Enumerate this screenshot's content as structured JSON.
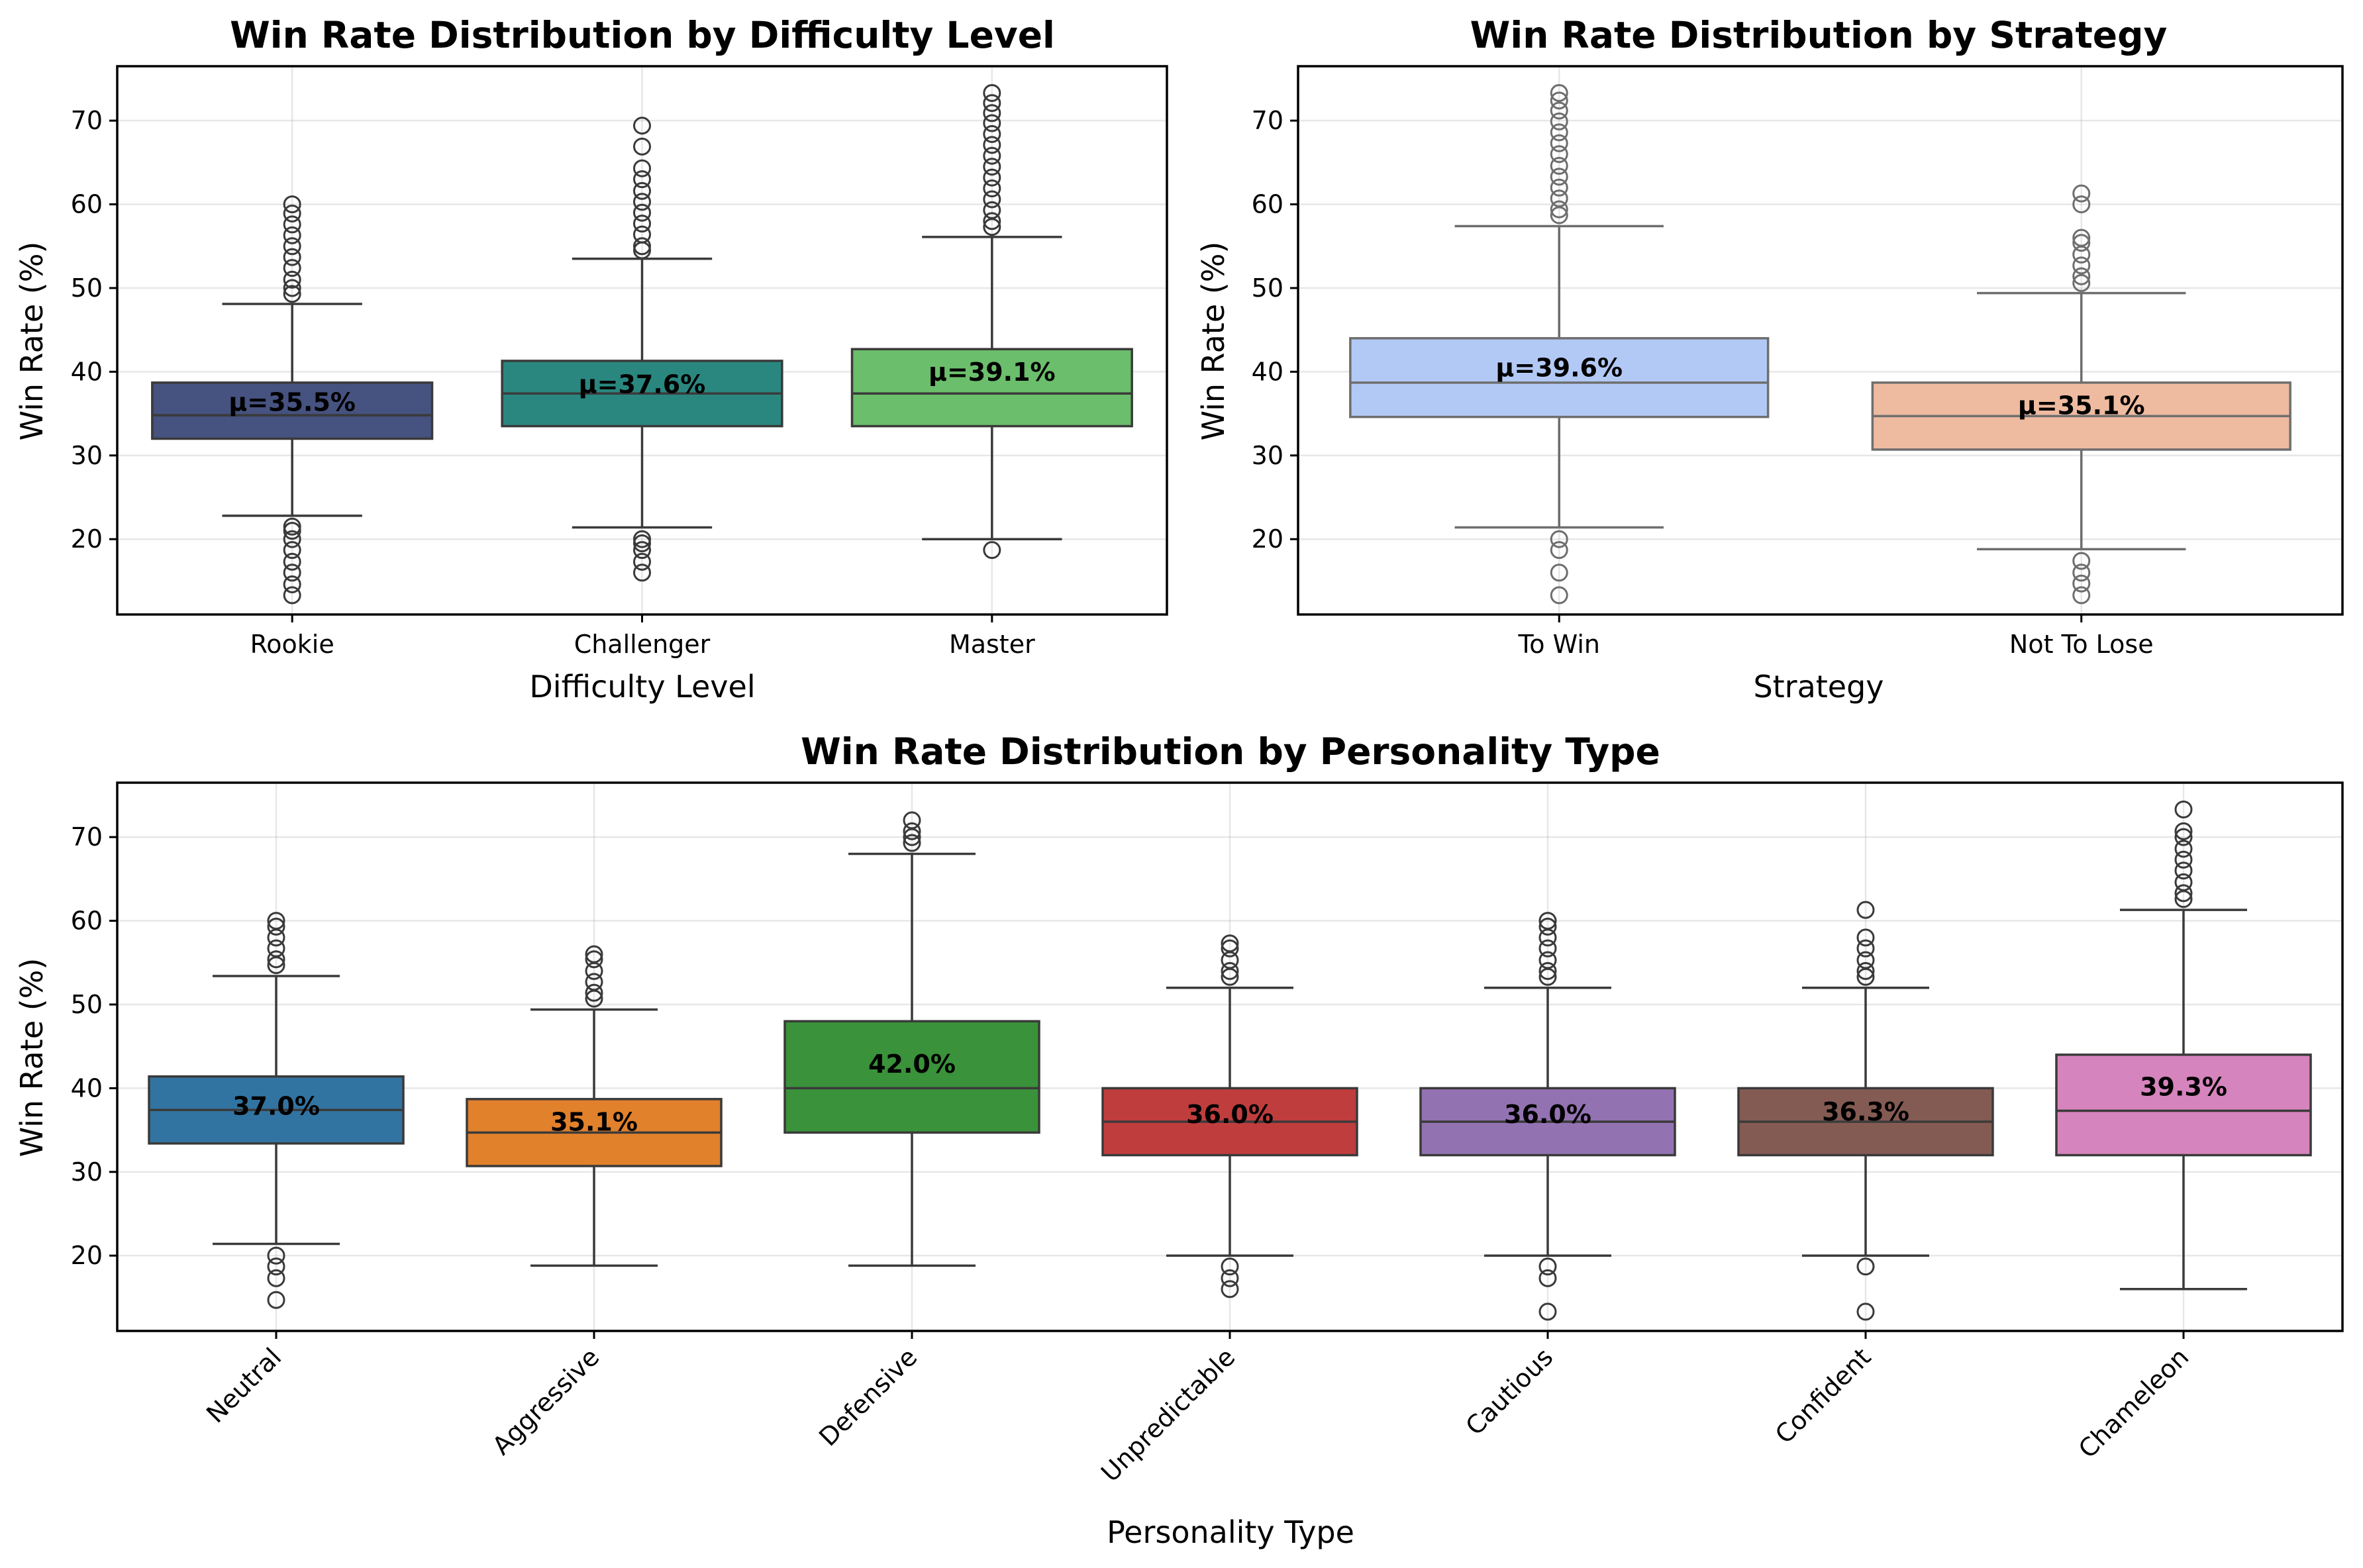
{
  "colors": {
    "box_edge": "#3a3a3a",
    "box_edge_light": "#6e6e6e"
  },
  "chart_data": [
    {
      "type": "box",
      "title": "Win Rate Distribution by Difficulty Level",
      "xlabel": "Difficulty Level",
      "ylabel": "Win Rate (%)",
      "ylim": [
        11,
        76.5
      ],
      "yticks": [
        20,
        30,
        40,
        50,
        60,
        70
      ],
      "grid": true,
      "mean_label_prefix": "μ=",
      "categories": [
        "Rookie",
        "Challenger",
        "Master"
      ],
      "boxes": [
        {
          "category": "Rookie",
          "color": "#46527f",
          "whislo": 22.8,
          "q1": 32.0,
          "median": 34.8,
          "q3": 38.7,
          "whishi": 48.1,
          "mean": 35.5,
          "mean_label": "μ=35.5%",
          "fliers": [
            13.3,
            14.6,
            16.0,
            17.3,
            18.7,
            20.0,
            21.0,
            21.5,
            49.3,
            50.0,
            51.0,
            52.4,
            53.7,
            55.0,
            56.3,
            57.6,
            58.9,
            60.0
          ]
        },
        {
          "category": "Challenger",
          "color": "#2a8780",
          "whislo": 21.4,
          "q1": 33.5,
          "median": 37.4,
          "q3": 41.3,
          "whishi": 53.5,
          "mean": 37.6,
          "mean_label": "μ=37.6%",
          "fliers": [
            16.0,
            17.3,
            18.7,
            19.5,
            20.0,
            54.5,
            55.0,
            56.4,
            57.7,
            59.0,
            60.3,
            61.6,
            63.0,
            64.3,
            66.9,
            69.4
          ]
        },
        {
          "category": "Master",
          "color": "#6bbe6b",
          "whislo": 20.0,
          "q1": 33.5,
          "median": 37.4,
          "q3": 42.7,
          "whishi": 56.1,
          "mean": 39.1,
          "mean_label": "μ=39.1%",
          "fliers": [
            18.7,
            57.3,
            58.0,
            59.3,
            60.6,
            61.9,
            63.2,
            64.5,
            65.8,
            67.1,
            68.4,
            69.7,
            70.9,
            72.1,
            73.3
          ]
        }
      ]
    },
    {
      "type": "box",
      "title": "Win Rate Distribution by Strategy",
      "xlabel": "Strategy",
      "ylabel": "Win Rate (%)",
      "ylim": [
        11,
        76.5
      ],
      "yticks": [
        20,
        30,
        40,
        50,
        60,
        70
      ],
      "grid": true,
      "mean_label_prefix": "μ=",
      "categories": [
        "To Win",
        "Not To Lose"
      ],
      "boxes": [
        {
          "category": "To Win",
          "color": "#b3c9f5",
          "edge": "light",
          "whislo": 21.4,
          "q1": 34.6,
          "median": 38.7,
          "q3": 44.0,
          "whishi": 57.4,
          "mean": 39.6,
          "mean_label": "μ=39.6%",
          "fliers": [
            13.3,
            16.0,
            18.7,
            20.0,
            58.7,
            59.4,
            60.7,
            62.0,
            63.3,
            64.6,
            66.0,
            67.3,
            68.6,
            69.9,
            71.2,
            72.4,
            73.3
          ]
        },
        {
          "category": "Not To Lose",
          "color": "#eebba0",
          "edge": "light",
          "whislo": 18.8,
          "q1": 30.7,
          "median": 34.7,
          "q3": 38.7,
          "whishi": 49.4,
          "mean": 35.1,
          "mean_label": "μ=35.1%",
          "fliers": [
            13.3,
            14.7,
            16.0,
            17.4,
            50.6,
            51.4,
            52.7,
            54.0,
            55.4,
            56.0,
            60.0,
            61.3
          ]
        }
      ]
    },
    {
      "type": "box",
      "title": "Win Rate Distribution by Personality Type",
      "xlabel": "Personality Type",
      "ylabel": "Win Rate (%)",
      "ylim": [
        11,
        76.5
      ],
      "yticks": [
        20,
        30,
        40,
        50,
        60,
        70
      ],
      "grid": true,
      "xtick_rotation": -45,
      "categories": [
        "Neutral",
        "Aggressive",
        "Defensive",
        "Unpredictable",
        "Cautious",
        "Confident",
        "Chameleon"
      ],
      "boxes": [
        {
          "category": "Neutral",
          "color": "#3274a1",
          "whislo": 21.4,
          "q1": 33.4,
          "median": 37.4,
          "q3": 41.4,
          "whishi": 53.4,
          "mean": 37.0,
          "mean_label": "37.0%",
          "fliers": [
            14.7,
            17.3,
            18.7,
            20.0,
            54.7,
            55.4,
            56.7,
            58.0,
            59.3,
            60.0
          ]
        },
        {
          "category": "Aggressive",
          "color": "#e1812c",
          "whislo": 18.8,
          "q1": 30.7,
          "median": 34.7,
          "q3": 38.7,
          "whishi": 49.4,
          "mean": 35.1,
          "mean_label": "35.1%",
          "fliers": [
            50.7,
            51.4,
            52.7,
            54.0,
            55.4,
            56.0
          ]
        },
        {
          "category": "Defensive",
          "color": "#3a923a",
          "whislo": 18.8,
          "q1": 34.7,
          "median": 40.0,
          "q3": 48.0,
          "whishi": 68.0,
          "mean": 42.0,
          "mean_label": "42.0%",
          "fliers": [
            69.3,
            70.0,
            70.7,
            72.0
          ]
        },
        {
          "category": "Unpredictable",
          "color": "#c03d3e",
          "whislo": 20.0,
          "q1": 32.0,
          "median": 36.0,
          "q3": 40.0,
          "whishi": 52.0,
          "mean": 36.0,
          "mean_label": "36.0%",
          "fliers": [
            16.0,
            17.3,
            18.7,
            53.3,
            54.0,
            55.3,
            56.7,
            57.3
          ]
        },
        {
          "category": "Cautious",
          "color": "#9372b2",
          "whislo": 20.0,
          "q1": 32.0,
          "median": 36.0,
          "q3": 40.0,
          "whishi": 52.0,
          "mean": 36.0,
          "mean_label": "36.0%",
          "fliers": [
            13.3,
            17.3,
            18.7,
            53.3,
            54.0,
            55.3,
            56.7,
            58.0,
            59.3,
            60.0
          ]
        },
        {
          "category": "Confident",
          "color": "#845b53",
          "whislo": 20.0,
          "q1": 32.0,
          "median": 36.0,
          "q3": 40.0,
          "whishi": 52.0,
          "mean": 36.3,
          "mean_label": "36.3%",
          "fliers": [
            13.3,
            18.7,
            53.3,
            54.0,
            55.3,
            56.7,
            58.0,
            61.3
          ]
        },
        {
          "category": "Chameleon",
          "color": "#d684bd",
          "whislo": 16.0,
          "q1": 32.0,
          "median": 37.3,
          "q3": 44.0,
          "whishi": 61.3,
          "mean": 39.3,
          "mean_label": "39.3%",
          "fliers": [
            62.6,
            63.3,
            64.6,
            66.0,
            67.3,
            68.6,
            70.0,
            70.7,
            73.3
          ]
        }
      ]
    }
  ]
}
